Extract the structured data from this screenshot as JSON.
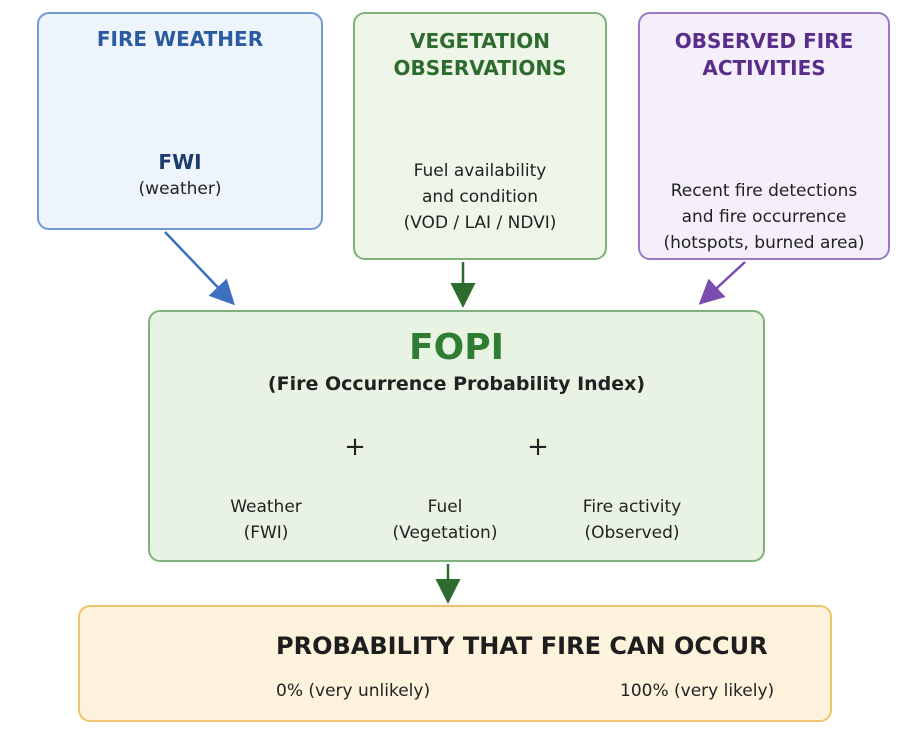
{
  "inputs": [
    {
      "title": [
        "FIRE WEATHER"
      ],
      "label": "FWI",
      "description": [
        "(weather)"
      ]
    },
    {
      "title": [
        "VEGETATION",
        "OBSERVATIONS"
      ],
      "description": [
        "Fuel availability",
        "and condition",
        "(VOD / LAI / NDVI)"
      ]
    },
    {
      "title": [
        "OBSERVED FIRE",
        "ACTIVITIES"
      ],
      "description": [
        "Recent fire detections",
        "and fire occurrence",
        "(hotspots, burned area)"
      ]
    }
  ],
  "index": {
    "title": "FOPI",
    "subtitle": "(Fire Occurrence Probability Index)",
    "components": [
      {
        "label": "Weather",
        "sublabel": "(FWI)"
      },
      {
        "label": "Fuel",
        "sublabel": "(Vegetation)"
      },
      {
        "label": "Fire activity",
        "sublabel": "(Observed)"
      }
    ],
    "operators": [
      "+",
      "+"
    ]
  },
  "output": {
    "title": "PROBABILITY THAT FIRE CAN OCCUR",
    "low": "0% (very unlikely)",
    "high": "100% (very likely)"
  }
}
